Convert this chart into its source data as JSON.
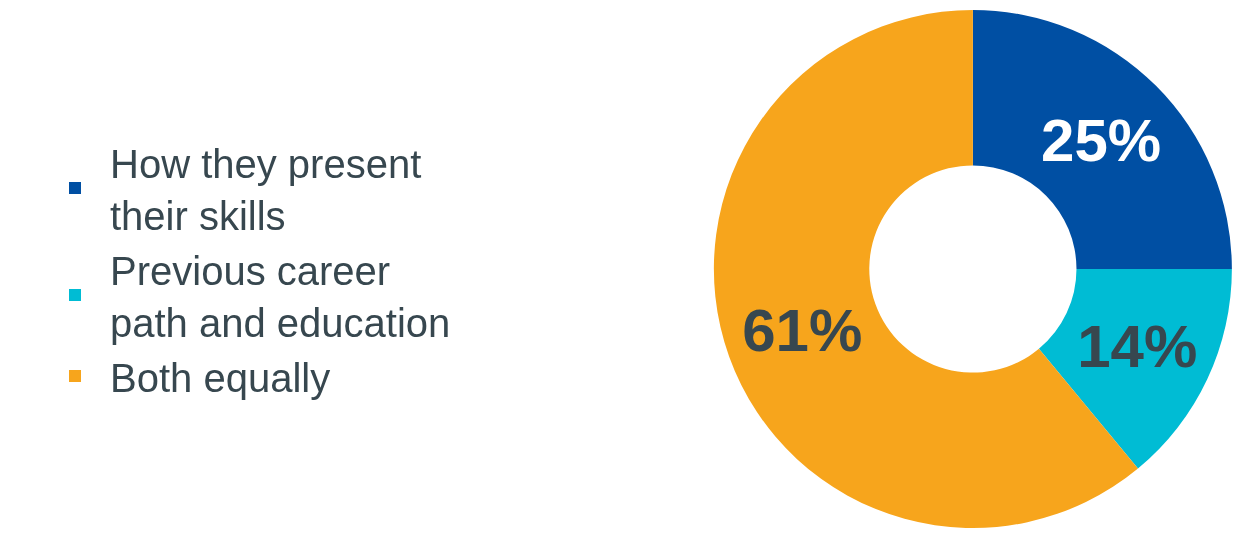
{
  "chart_data": {
    "type": "donut",
    "categories": [
      "How they present their skills",
      "Previous career path and education",
      "Both equally"
    ],
    "values": [
      25,
      14,
      61
    ],
    "colors": [
      "#004fa3",
      "#00bcd4",
      "#f7a51c"
    ],
    "value_labels": [
      "25%",
      "14%",
      "61%"
    ],
    "legend": "left"
  }
}
